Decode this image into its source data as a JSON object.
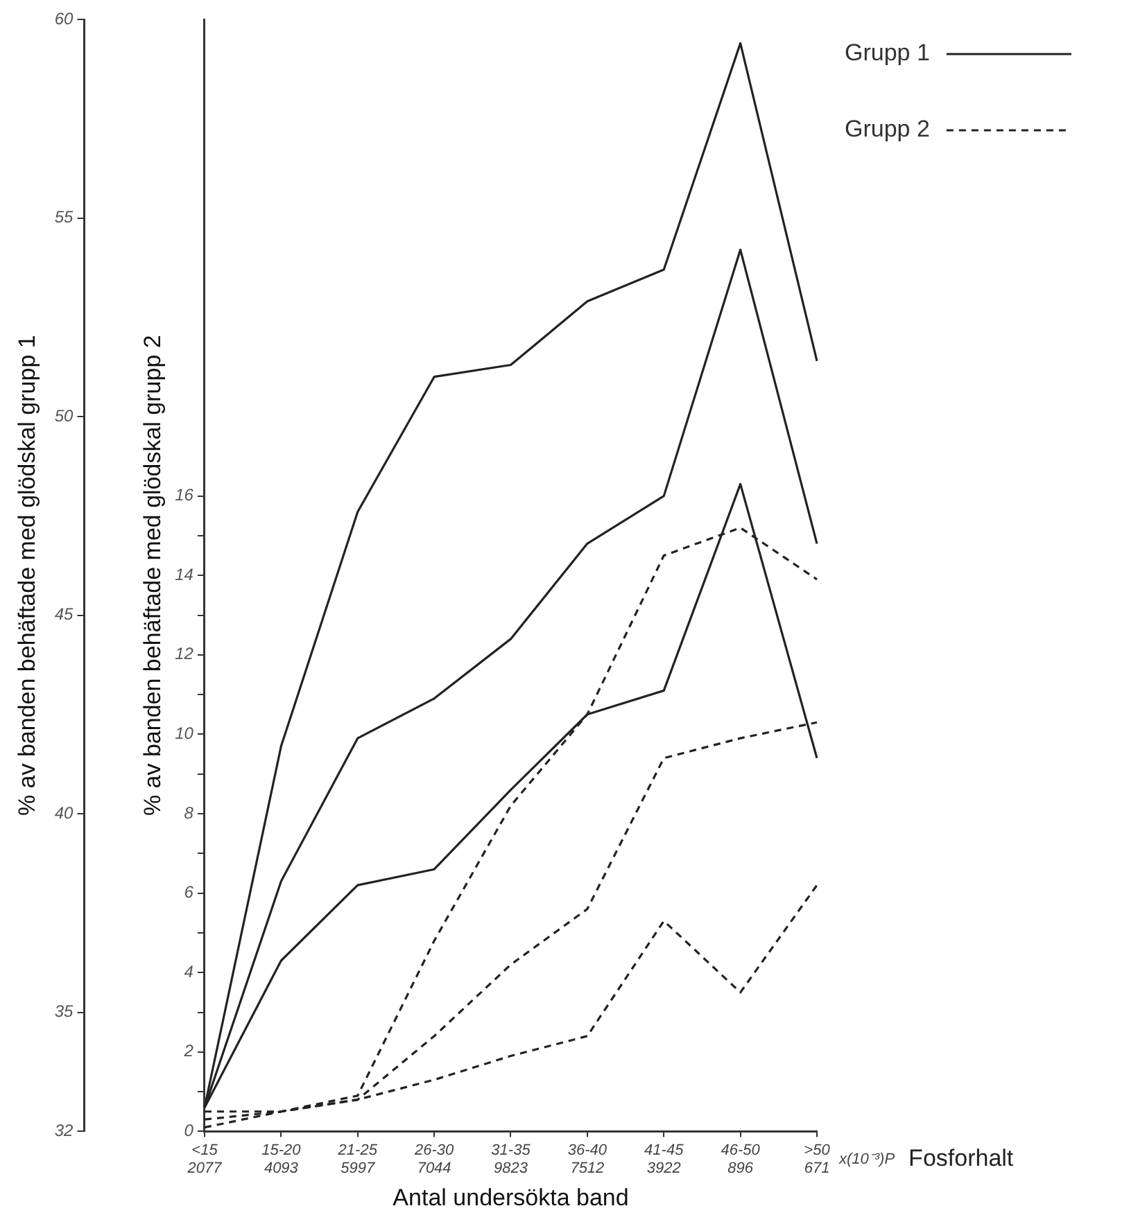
{
  "chart_data": {
    "type": "line",
    "categories": [
      "<15\n2077",
      "15-20\n4093",
      "21-25\n5997",
      "26-30\n7044",
      "31-35\n9823",
      "36-40\n7512",
      "41-45\n3922",
      "46-50\n896",
      ">50\n671"
    ],
    "series": [
      {
        "name": "Grupp 1",
        "color": "#222222",
        "line_style": "solid",
        "values": [
          32.6,
          41.7,
          47.6,
          51.0,
          51.3,
          52.9,
          53.7,
          59.4,
          51.4
        ]
      },
      {
        "color": "#222222",
        "line_style": "solid",
        "values": [
          32.6,
          38.3,
          41.9,
          42.9,
          44.4,
          46.8,
          48.0,
          54.2,
          46.8
        ]
      },
      {
        "color": "#222222",
        "line_style": "solid",
        "values": [
          32.6,
          36.3,
          38.2,
          38.6,
          40.6,
          42.5,
          43.1,
          48.3,
          41.4
        ]
      },
      {
        "name": "Grupp 2",
        "color": "#222222",
        "line_style": "dashed",
        "axis": "y2",
        "values": [
          0.5,
          0.5,
          0.9,
          4.8,
          8.2,
          10.5,
          14.5,
          15.2,
          13.9
        ]
      },
      {
        "color": "#222222",
        "line_style": "dashed",
        "axis": "y2",
        "values": [
          0.3,
          0.5,
          0.8,
          2.4,
          4.2,
          5.6,
          9.4,
          9.9,
          10.3
        ]
      },
      {
        "color": "#222222",
        "line_style": "dashed",
        "axis": "y2",
        "values": [
          0.1,
          0.5,
          0.8,
          1.3,
          1.9,
          2.4,
          5.3,
          3.5,
          6.2
        ]
      }
    ],
    "xlabel": "Antal undersökta band",
    "ylabel": "% av banden behäftade med glödskal grupp 1",
    "y2label": "% av banden behäftade med glödskal grupp 2",
    "annotations": [
      "x(10⁻³)P",
      "Fosforhalt"
    ],
    "ylim": [
      32,
      60
    ],
    "yticks": [
      32,
      35,
      40,
      45,
      50,
      55,
      60
    ],
    "y2lim": [
      0,
      28
    ],
    "y2ticks": [
      0,
      {
        "value": 1,
        "label": null
      },
      2,
      {
        "value": 3,
        "label": null
      },
      4,
      {
        "value": 5,
        "label": null
      },
      6,
      {
        "value": 7,
        "label": null
      },
      8,
      {
        "value": 9,
        "label": null
      },
      10,
      {
        "value": 11,
        "label": null
      },
      12,
      {
        "value": 13,
        "label": null
      },
      14,
      {
        "value": 15,
        "label": null
      },
      16
    ],
    "grid": false,
    "legend": "top right",
    "marker": "none"
  }
}
